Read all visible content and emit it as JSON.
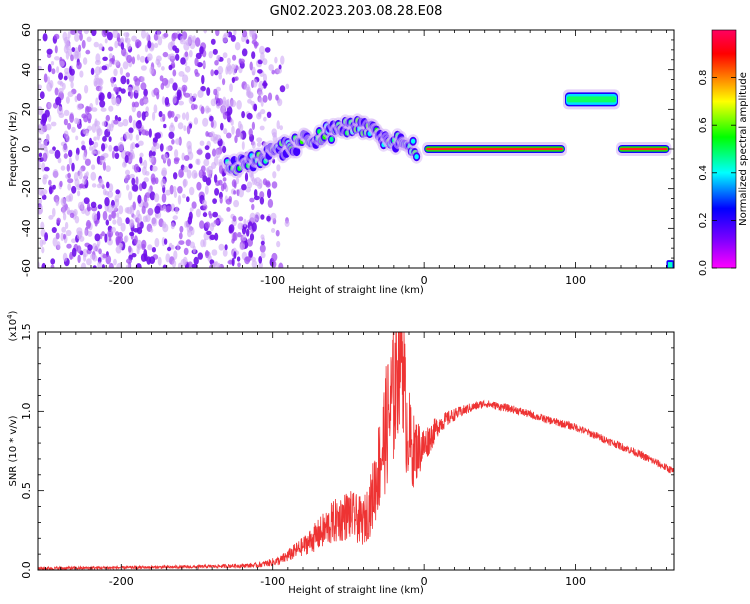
{
  "title": "GN02.2023.203.08.28.E08",
  "chart_data": [
    {
      "type": "heatmap",
      "xlabel": "Height of straight line (km)",
      "ylabel": "Frequency (Hz)",
      "xlim": [
        -255,
        165
      ],
      "ylim": [
        -60,
        60
      ],
      "xticks": [
        -200,
        -100,
        0,
        100
      ],
      "yticks": [
        -60,
        -40,
        -20,
        0,
        20,
        40,
        60
      ],
      "colorbar": {
        "label": "Normalized spectral amplitude",
        "range": [
          0,
          1
        ],
        "ticks": [
          "0.0",
          "0.2",
          "0.4",
          "0.6",
          "0.8"
        ],
        "colormap": [
          "#ff00ff",
          "#7b00ff",
          "#0000ff",
          "#00ffff",
          "#00ff00",
          "#ffff00",
          "#ff8000",
          "#ff0000",
          "#ff0060"
        ]
      },
      "features": [
        {
          "kind": "noise",
          "x": [
            -255,
            -105
          ],
          "y": [
            -60,
            60
          ],
          "amplitude": 0.15
        },
        {
          "kind": "band",
          "x": [
            -130,
            -5
          ],
          "y_start": -10,
          "y_end": 0,
          "y_peak": 12,
          "amplitude": 0.5
        },
        {
          "kind": "line",
          "x": [
            0,
            93
          ],
          "y": 0,
          "amplitude": 0.92
        },
        {
          "kind": "line",
          "x": [
            93,
            128
          ],
          "y": 25,
          "amplitude": 0.5
        },
        {
          "kind": "line",
          "x": [
            128,
            162
          ],
          "y": 0,
          "amplitude": 0.92
        },
        {
          "kind": "spot",
          "x": [
            160,
            165
          ],
          "y": [
            -62,
            -56
          ],
          "amplitude": 0.5
        }
      ]
    },
    {
      "type": "line",
      "xlabel": "Height of straight line (km)",
      "ylabel": "SNR (10 * v/v)",
      "yscale_label": "(x10",
      "yscale_exp": "4",
      "yscale_close": ")",
      "xlim": [
        -255,
        165
      ],
      "ylim": [
        0,
        1.5
      ],
      "xticks": [
        -200,
        -100,
        0,
        100
      ],
      "yticks": [
        "0.0",
        "0.5",
        "1.0",
        "1.5"
      ],
      "color": "#ee3333",
      "envelope": {
        "x": [
          -255,
          -200,
          -150,
          -110,
          -95,
          -80,
          -70,
          -60,
          -50,
          -40,
          -35,
          -30,
          -25,
          -20,
          -15,
          -12,
          -8,
          0,
          10,
          20,
          30,
          40,
          60,
          80,
          100,
          120,
          140,
          165
        ],
        "y": [
          0.01,
          0.015,
          0.02,
          0.03,
          0.06,
          0.15,
          0.22,
          0.3,
          0.35,
          0.3,
          0.42,
          0.65,
          0.9,
          1.1,
          1.5,
          0.95,
          0.75,
          0.78,
          0.92,
          0.98,
          1.02,
          1.05,
          1.01,
          0.95,
          0.9,
          0.82,
          0.74,
          0.62
        ],
        "noise": [
          0.01,
          0.01,
          0.01,
          0.015,
          0.03,
          0.06,
          0.1,
          0.14,
          0.16,
          0.15,
          0.2,
          0.3,
          0.4,
          0.45,
          0.5,
          0.35,
          0.25,
          0.12,
          0.06,
          0.04,
          0.03,
          0.025,
          0.025,
          0.025,
          0.025,
          0.025,
          0.025,
          0.025
        ]
      }
    }
  ]
}
